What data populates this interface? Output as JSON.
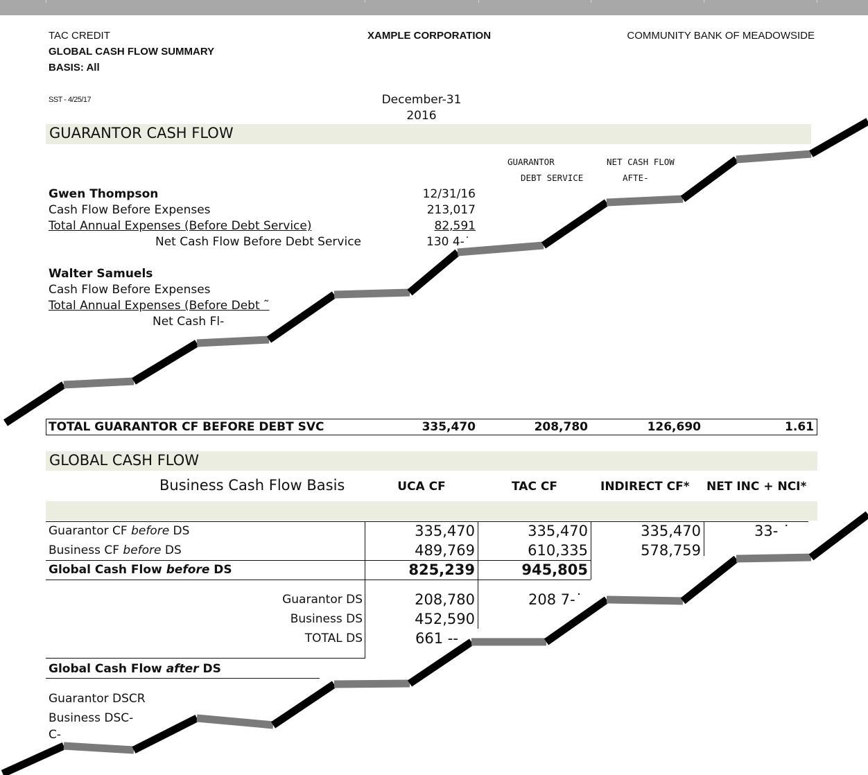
{
  "header": {
    "left_line1": "TAC CREDIT",
    "left_line2": "GLOBAL CASH FLOW SUMMARY",
    "left_line3": "BASIS: All",
    "center": "XAMPLE CORPORATION",
    "right": "COMMUNITY BANK OF MEADOWSIDE",
    "stamp": "SST - 4/25/17"
  },
  "period": {
    "month": "December-31",
    "year": "2016"
  },
  "guarantor_section": {
    "title": "GUARANTOR CASH FLOW",
    "col_header_ds_1": "GUARANTOR",
    "col_header_ds_2": "DEBT SERVICE",
    "col_header_net_1": "NET CASH FLOW",
    "col_header_net_2": "AFTE‐",
    "gwen": {
      "name": "Gwen Thompson",
      "date": "12/31/16",
      "cf_before_exp_label": "Cash Flow Before Expenses",
      "cf_before_exp": "213,017",
      "total_exp_label": "Total Annual Expenses (Before Debt Service)",
      "total_exp": "82,591",
      "net_label": "Net Cash Flow Before Debt Service",
      "net": "130 4‐˙"
    },
    "walter": {
      "name": "Walter Samuels",
      "cf_before_exp_label": "Cash Flow Before Expenses",
      "total_exp_label": "Total Annual Expenses (Before Debt ˜",
      "net_label": "Net Cash Fl‐"
    },
    "total": {
      "label": "TOTAL GUARANTOR CF BEFORE DEBT SVC",
      "v1": "335,470",
      "v2": "208,780",
      "v3": "126,690",
      "v4": "1.61"
    }
  },
  "global_section": {
    "title": "GLOBAL CASH FLOW",
    "basis_label": "Business Cash Flow Basis",
    "columns": [
      "UCA CF",
      "TAC CF",
      "INDIRECT CF*",
      "NET INC + NCI*"
    ],
    "rows": {
      "guarantor_cf": {
        "pre": "Guarantor CF ",
        "em": "before",
        "post": " DS",
        "uca": "335,470",
        "tac": "335,470",
        "indirect": "335,470",
        "netinc": "33‐ ˙"
      },
      "business_cf": {
        "pre": "Business CF ",
        "em": "before",
        "post": " DS",
        "uca": "489,769",
        "tac": "610,335",
        "indirect": "578,759"
      },
      "global_cf": {
        "pre": "Global Cash Flow ",
        "em": "before",
        "post": " DS",
        "uca": "825,239",
        "tac": "945,805"
      },
      "guarantor_ds": {
        "label": "Guarantor DS",
        "uca": "208,780",
        "tac": "208 7‐˙"
      },
      "business_ds": {
        "label": "Business DS",
        "uca": "452,590"
      },
      "total_ds": {
        "label": "TOTAL DS",
        "uca": "661 ‐‐"
      },
      "global_after": {
        "pre": "Global Cash Flow ",
        "em": "after",
        "post": " DS"
      },
      "guarantor_dscr": {
        "label": "Guarantor DSCR"
      },
      "business_dscr": {
        "label": "Business DSC‐"
      },
      "last_partial": {
        "label": "C‐"
      }
    }
  },
  "colors": {
    "band": "#eaeddf",
    "topbar": "#a8a8a8",
    "tear_dark": "#000000",
    "tear_light": "#808080"
  }
}
